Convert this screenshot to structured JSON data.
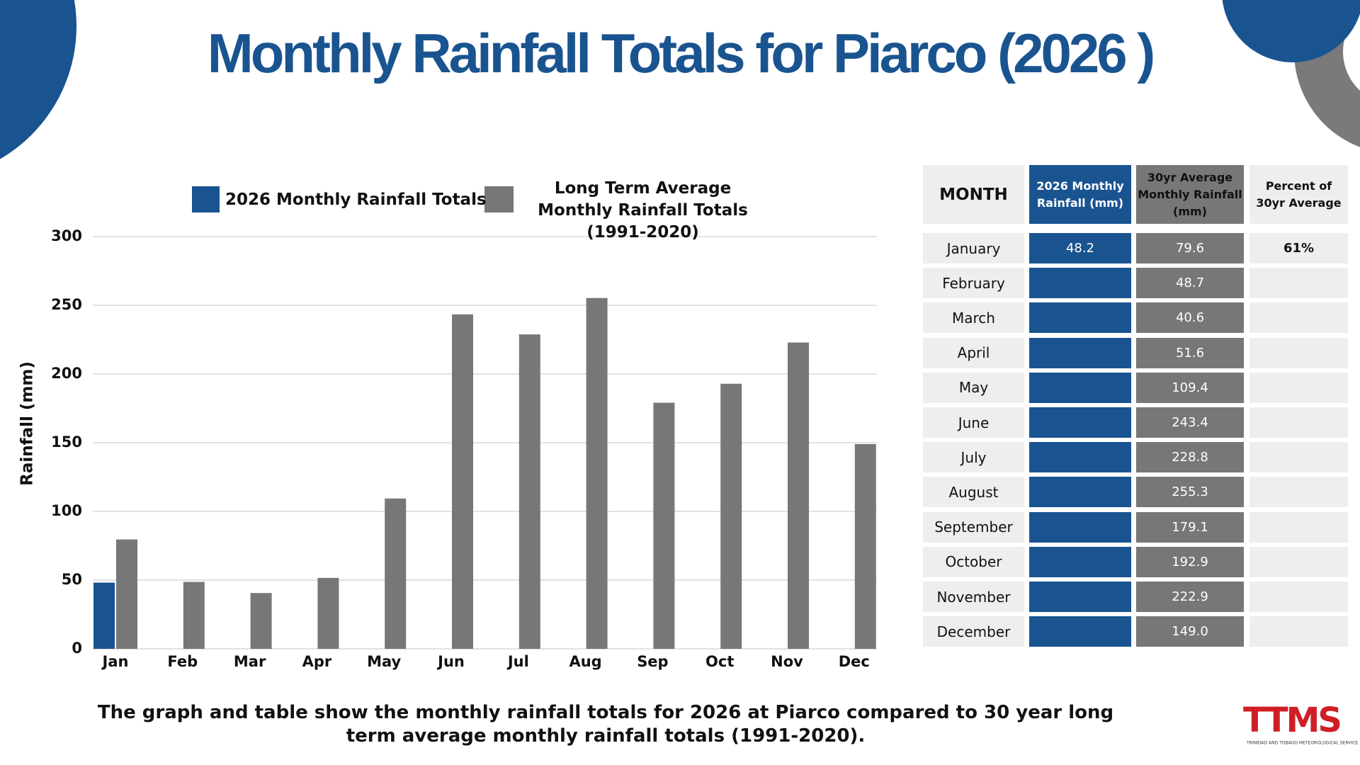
{
  "chart_data": {
    "type": "bar",
    "title": "Monthly Rainfall Totals for Piarco (2026 )",
    "y_label": "Rainfall  (mm)",
    "categories": [
      "Jan",
      "Feb",
      "Mar",
      "Apr",
      "May",
      "Jun",
      "Jul",
      "Aug",
      "Sep",
      "Oct",
      "Nov",
      "Dec"
    ],
    "series": [
      {
        "name": "2026 Monthly Rainfall Totals",
        "color": "#1a5490",
        "values": [
          48.2,
          null,
          null,
          null,
          null,
          null,
          null,
          null,
          null,
          null,
          null,
          null
        ]
      },
      {
        "name": "Long Term Average Monthly Rainfall Totals (1991-2020)",
        "color": "#777777",
        "values": [
          79.6,
          48.7,
          40.6,
          51.6,
          109.4,
          243.4,
          228.8,
          255.3,
          179.1,
          192.9,
          222.9,
          149.0
        ]
      }
    ],
    "ylim": [
      0,
      300
    ],
    "yticks": [
      0,
      50,
      100,
      150,
      200,
      250,
      300
    ],
    "grid": true
  },
  "table": {
    "header": [
      "MONTH",
      "2026 Monthly Rainfall (mm)",
      "30yr Average Monthly Rainfall (mm)",
      "Percent of 30yr Average"
    ],
    "rows": [
      [
        "January",
        "48.2",
        "79.6",
        "61%"
      ],
      [
        "February",
        null,
        "48.7",
        null
      ],
      [
        "March",
        null,
        "40.6",
        null
      ],
      [
        "April",
        null,
        "51.6",
        null
      ],
      [
        "May",
        null,
        "109.4",
        null
      ],
      [
        "June",
        null,
        "243.4",
        null
      ],
      [
        "July",
        null,
        "228.8",
        null
      ],
      [
        "August",
        null,
        "255.3",
        null
      ],
      [
        "September",
        null,
        "179.1",
        null
      ],
      [
        "October",
        null,
        "192.9",
        null
      ],
      [
        "November",
        null,
        "222.9",
        null
      ],
      [
        "December",
        null,
        "149.0",
        null
      ]
    ]
  },
  "caption": "The graph and table show the monthly rainfall totals for 2026 at Piarco compared to 30 year long term average monthly rainfall totals (1991-2020).",
  "logo": {
    "text": "TTMS",
    "subtitle": "TRINIDAD AND TOBAGO METEOROLOGICAL SERVICE"
  }
}
